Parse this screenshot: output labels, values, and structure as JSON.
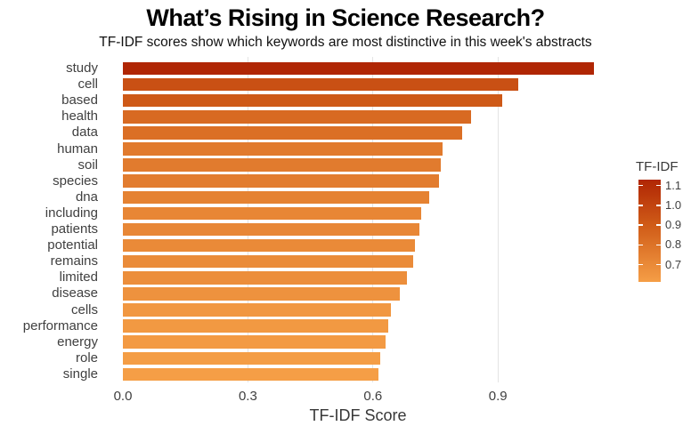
{
  "header": {
    "title": "What’s Rising in Science Research?",
    "subtitle": "TF-IDF scores show which keywords are most distinctive in this week's abstracts"
  },
  "chart_data": {
    "type": "bar",
    "orientation": "horizontal",
    "title": "What’s Rising in Science Research?",
    "subtitle": "TF-IDF scores show which keywords are most distinctive in this week's abstracts",
    "categories": [
      "study",
      "cell",
      "based",
      "health",
      "data",
      "human",
      "soil",
      "species",
      "dna",
      "including",
      "patients",
      "potential",
      "remains",
      "limited",
      "disease",
      "cells",
      "performance",
      "energy",
      "role",
      "single"
    ],
    "values": [
      1.13,
      0.949,
      0.91,
      0.836,
      0.814,
      0.767,
      0.763,
      0.758,
      0.734,
      0.715,
      0.711,
      0.7,
      0.696,
      0.681,
      0.664,
      0.643,
      0.636,
      0.631,
      0.617,
      0.613
    ],
    "xlabel": "TF-IDF Score",
    "ylabel": "",
    "x_ticks": [
      0,
      0.3,
      0.6,
      0.9
    ],
    "x_tick_labels": [
      "0.0",
      "0.3",
      "0.6",
      "0.9"
    ],
    "xlim": [
      0,
      1.18
    ],
    "grid": "vertical-major-only",
    "legend": {
      "title": "TF-IDF",
      "position": "right",
      "ticks": [
        1.1,
        1.0,
        0.9,
        0.8,
        0.7
      ],
      "tick_labels": [
        "1.1",
        "1.0",
        "0.9",
        "0.8",
        "0.7"
      ],
      "domain": [
        0.613,
        1.13
      ]
    },
    "color_scale": {
      "stops": [
        {
          "t": 0.0,
          "color": "#f59e46"
        },
        {
          "t": 0.55,
          "color": "#d05c18"
        },
        {
          "t": 1.0,
          "color": "#b02604"
        }
      ]
    }
  },
  "colors": {
    "background": "#ffffff",
    "gridline": "#e4e4e4",
    "axis_text": "#404040",
    "title_text": "#000000"
  }
}
